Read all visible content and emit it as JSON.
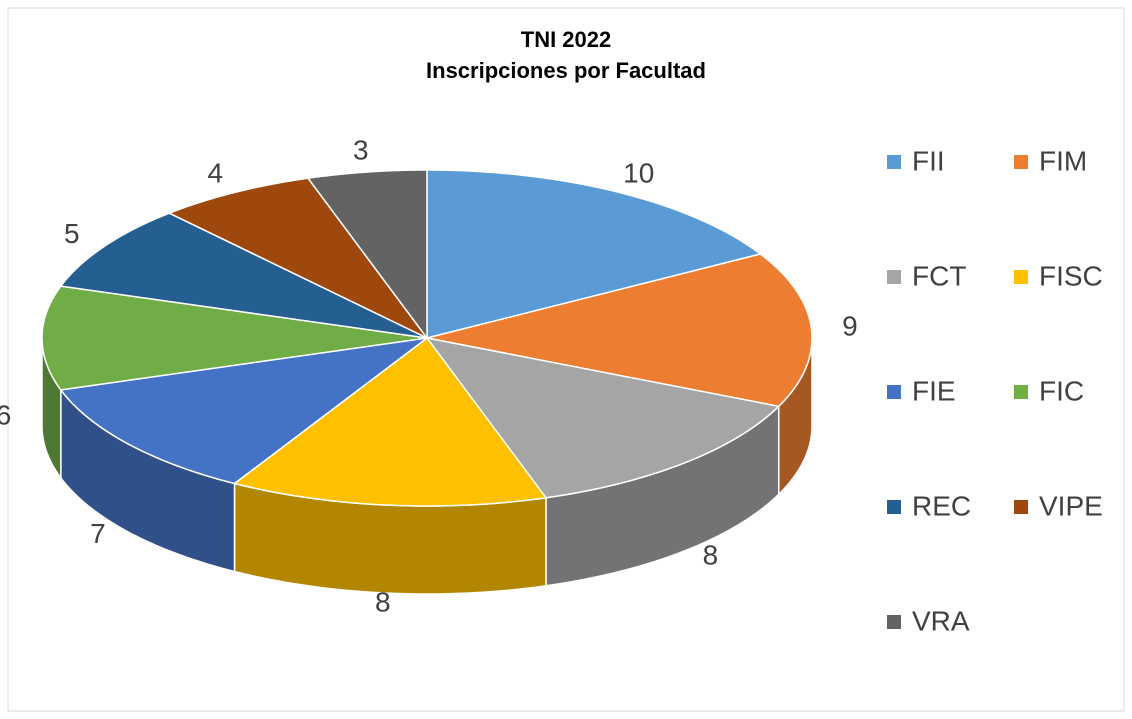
{
  "chart_data": {
    "type": "pie3d",
    "title": "TNI 2022",
    "subtitle": "Inscripciones por Facultad",
    "categories": [
      "FII",
      "FIM",
      "FCT",
      "FISC",
      "FIE",
      "FIC",
      "REC",
      "VIPE",
      "VRA"
    ],
    "values": [
      10,
      9,
      8,
      8,
      7,
      6,
      5,
      4,
      3
    ],
    "colors": [
      "#5b9bd5",
      "#ed7d31",
      "#a5a5a5",
      "#ffc000",
      "#4472c4",
      "#70ad47",
      "#255e91",
      "#9e480e",
      "#636363"
    ],
    "legend": "right"
  }
}
